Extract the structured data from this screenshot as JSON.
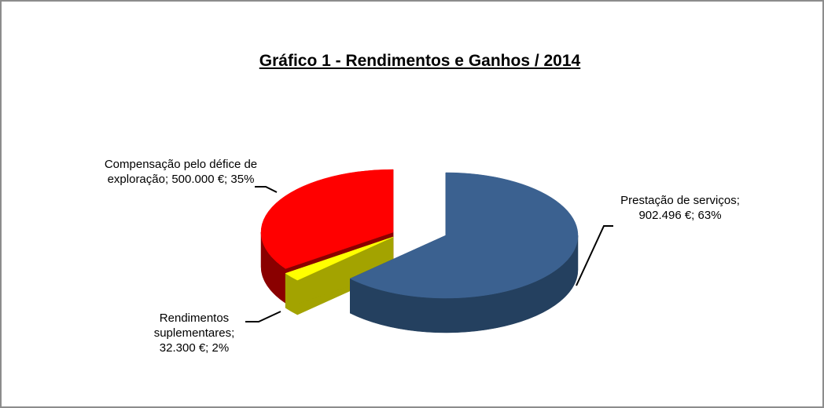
{
  "chart_data": {
    "type": "pie3d",
    "title": "Gráfico 1 - Rendimentos e Ganhos / 2014",
    "categories": [
      "Prestação de serviços",
      "Rendimentos suplementares",
      "Compensação pelo défice de exploração"
    ],
    "values": [
      902496,
      32300,
      500000
    ],
    "value_labels": [
      "902.496 €",
      "32.300 €",
      "500.000 €"
    ],
    "percentages": [
      63,
      2,
      35
    ],
    "percentage_labels": [
      "63%",
      "2%",
      "35%"
    ],
    "label_separator": "; ",
    "colors": [
      "#3b6190",
      "#ffff00",
      "#ff0000"
    ],
    "side_colors": [
      "#24405f",
      "#a3a300",
      "#8a0000"
    ]
  }
}
